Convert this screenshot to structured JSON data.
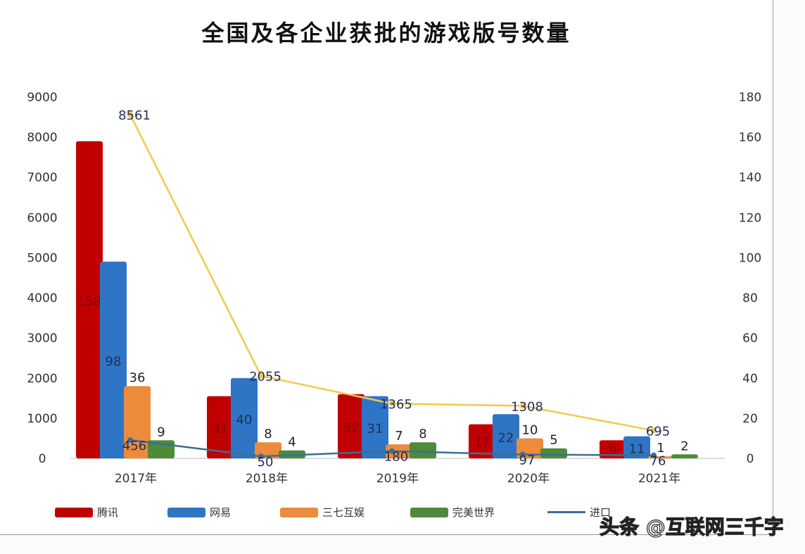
{
  "chart_data": {
    "type": "bar",
    "title": "全国及各企业获批的游戏版号数量",
    "categories": [
      "2017年",
      "2018年",
      "2019年",
      "2020年",
      "2021年"
    ],
    "y_left": {
      "range": [
        0,
        9000
      ],
      "ticks": [
        0,
        1000,
        2000,
        3000,
        4000,
        5000,
        6000,
        7000,
        8000,
        9000
      ]
    },
    "y_right": {
      "range": [
        0,
        180
      ],
      "ticks": [
        0,
        20,
        40,
        60,
        80,
        100,
        120,
        140,
        160,
        180
      ]
    },
    "bar_series": [
      {
        "name": "腾讯",
        "color": "#c00000",
        "axis": "right",
        "values": [
          158,
          31,
          32,
          17,
          9
        ]
      },
      {
        "name": "网易",
        "color": "#2e75c6",
        "axis": "right",
        "values": [
          98,
          40,
          31,
          22,
          11
        ]
      },
      {
        "name": "三七互娱",
        "color": "#ed8b3a",
        "axis": "right",
        "values": [
          36,
          8,
          7,
          10,
          1
        ]
      },
      {
        "name": "完美世界",
        "color": "#4e8a3a",
        "axis": "right",
        "values": [
          9,
          4,
          8,
          5,
          2
        ]
      }
    ],
    "line_series": [
      {
        "name": "进口",
        "color": "#3a6f96",
        "axis": "left",
        "values": [
          456,
          50,
          180,
          97,
          76
        ]
      },
      {
        "color": "#f2c94c",
        "axis": "left",
        "values": [
          8561,
          2055,
          1365,
          1308,
          695
        ]
      }
    ],
    "grid": false,
    "legend": "bottom"
  },
  "watermark": "头条 @互联网三千字"
}
